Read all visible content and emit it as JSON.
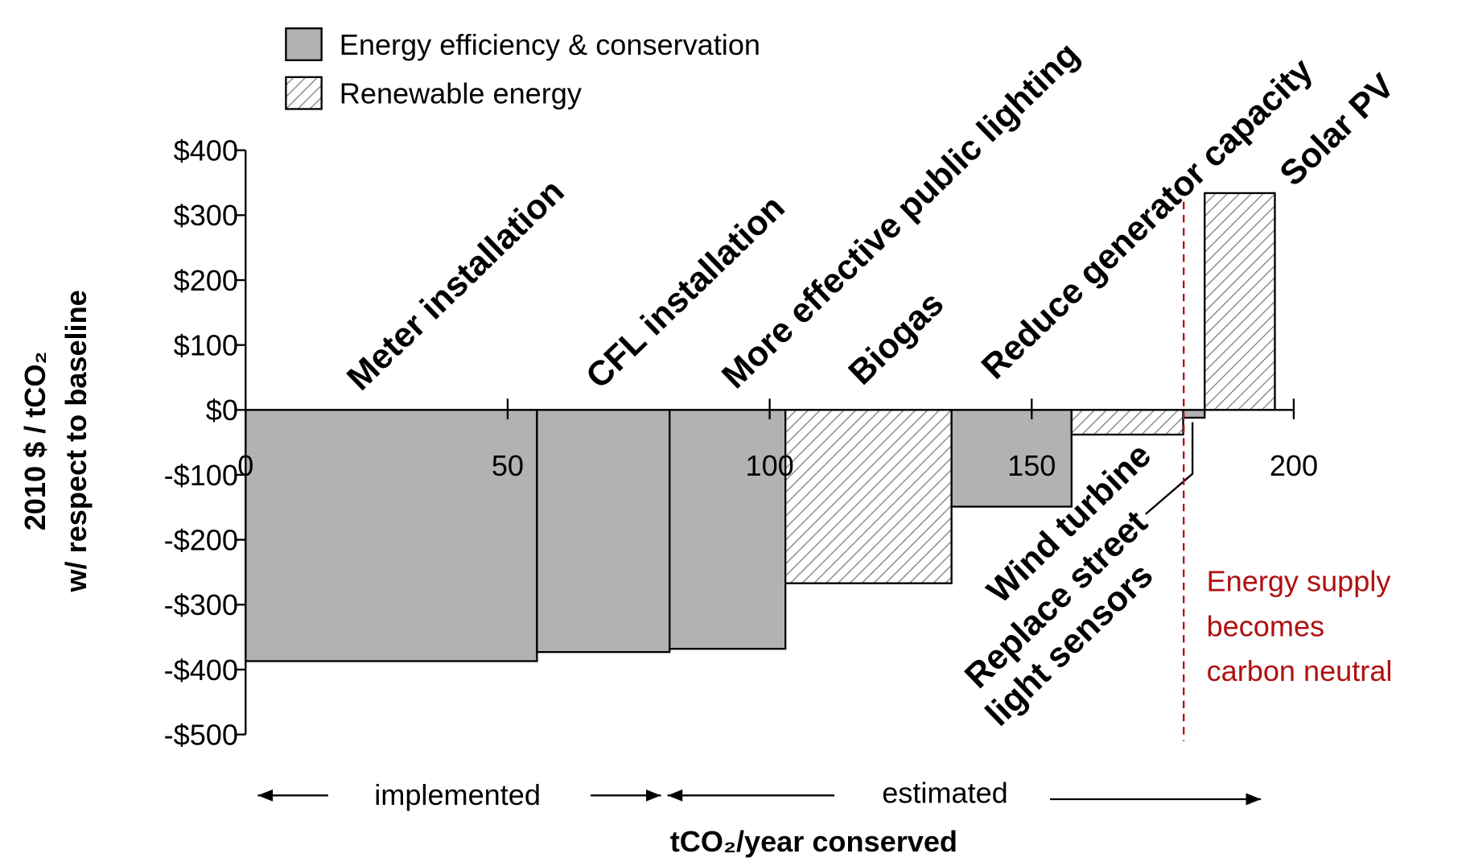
{
  "chart_data": {
    "type": "bar",
    "title_lines": [],
    "y_label_lines": [
      "2010 $ / tCO₂",
      "w/ respect to baseline"
    ],
    "x_label": "tCO₂/year conserved",
    "series": [
      {
        "name": "Energy efficiency & conservation",
        "color": "#b2b2b2",
        "pattern": "solid"
      },
      {
        "name": "Renewable energy",
        "color": "#ffffff",
        "pattern": "hatch"
      }
    ],
    "categories": [
      [
        "Meter installation"
      ],
      [
        "CFL installation"
      ],
      [
        "More effective public lighting"
      ],
      [
        "Biogas"
      ],
      [
        "Reduce generator capacity"
      ],
      [
        "Wind turbine"
      ],
      [
        "Replace street",
        "light sensors"
      ],
      [
        "Solar PV"
      ]
    ],
    "bar_series": [
      0,
      0,
      0,
      1,
      0,
      1,
      0,
      1
    ],
    "bins": [
      0,
      55.6,
      80.9,
      103,
      134.7,
      157.6,
      178.9,
      183,
      196.4
    ],
    "values": [
      -387,
      -373,
      -368,
      -267,
      -149,
      -38,
      -12,
      334
    ],
    "xlim": [
      0,
      200
    ],
    "xticks": [
      0,
      50,
      100,
      150,
      200
    ],
    "ylim": [
      -500,
      400
    ],
    "yticks": [
      {
        "value": 400,
        "label": "$400"
      },
      {
        "value": 300,
        "label": "$300"
      },
      {
        "value": 200,
        "label": "$200"
      },
      {
        "value": 100,
        "label": "$100"
      },
      {
        "value": 0,
        "label": "$0"
      },
      {
        "value": -100,
        "label": "-$100"
      },
      {
        "value": -200,
        "label": "-$200"
      },
      {
        "value": -300,
        "label": "-$300"
      },
      {
        "value": -400,
        "label": "-$400"
      },
      {
        "value": -500,
        "label": "-$500"
      }
    ],
    "neutral_line_x": 179,
    "neutral_line_color": "#b01010",
    "annotation_lines": [
      "Energy supply",
      "becomes",
      "carbon neutral"
    ],
    "phases": [
      "implemented",
      "estimated"
    ]
  }
}
